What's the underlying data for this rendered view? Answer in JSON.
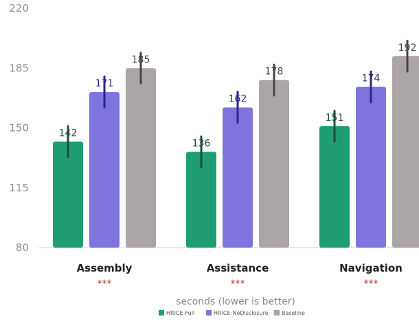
{
  "chart_data": {
    "type": "bar",
    "categories": [
      "Assembly",
      "Assistance",
      "Navigation"
    ],
    "significance": [
      "***",
      "***",
      "***"
    ],
    "series": [
      {
        "name": "HRICE-Full",
        "color": "#1f9e73",
        "label_color": "#1d4d3a",
        "values": [
          142,
          136,
          151
        ],
        "error": [
          9,
          9,
          9
        ]
      },
      {
        "name": "HRICE-NoDisclosure",
        "color": "#7f74de",
        "label_color": "#2b2785",
        "values": [
          171,
          162,
          174
        ],
        "error": [
          9,
          9,
          9
        ]
      },
      {
        "name": "Baseline",
        "color": "#aca5a5",
        "label_color": "#454545",
        "values": [
          185,
          178,
          192
        ],
        "error": [
          9,
          9,
          9
        ]
      }
    ],
    "ylim": [
      80,
      220
    ],
    "yticks": [
      80,
      115,
      150,
      185,
      220
    ],
    "xlabel": "seconds (lower is better)",
    "ylabel": "",
    "title": "",
    "legend_position": "bottom",
    "grid": false
  }
}
